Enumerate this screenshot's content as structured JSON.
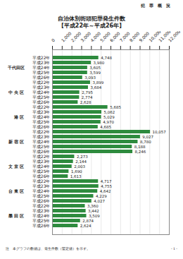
{
  "header": "犯 罪 概 況",
  "chart_data": {
    "type": "bar",
    "orientation": "horizontal",
    "title": "自治体別街頭犯罪発生件数",
    "subtitle": "【平成22年～平成26年】",
    "color": "#2e8b3e",
    "grid": true,
    "data_labels": true,
    "xlim": [
      0,
      12000
    ],
    "xticks": [
      0,
      {
        "value": 1000,
        "label": "1,000"
      },
      {
        "value": 2000,
        "label": "2,000"
      },
      {
        "value": 3000,
        "label": "3,000"
      },
      {
        "value": 4000,
        "label": "4,000"
      },
      {
        "value": 5000,
        "label": "5,000"
      },
      {
        "value": 6000,
        "label": "6,000"
      },
      {
        "value": 7000,
        "label": "7,000"
      },
      {
        "value": 8000,
        "label": "8,000"
      },
      {
        "value": 9000,
        "label": "9,000"
      },
      {
        "value": 10000,
        "label": "10,000"
      },
      {
        "value": 11000,
        "label": "11,000"
      },
      {
        "value": 12000,
        "label": "12,000"
      }
    ],
    "groups": [
      {
        "name": "千代田区",
        "categories": [
          "平成22年",
          "平成23年",
          "平成24年",
          "平成25年",
          "平成26年"
        ],
        "values": [
          4748,
          3980,
          3605,
          3599,
          3093
        ],
        "value_labels": [
          "4,748",
          "3,980",
          "3,605",
          "3,599",
          "3,093"
        ]
      },
      {
        "name": "中 央 区",
        "categories": [
          "平成22年",
          "平成23年",
          "平成24年",
          "平成25年",
          "平成26年"
        ],
        "values": [
          3899,
          3684,
          2795,
          2774,
          2628
        ],
        "value_labels": [
          "3,899",
          "3,684",
          "2,795",
          "2,774",
          "2,628"
        ]
      },
      {
        "name": "港 区",
        "categories": [
          "平成22年",
          "平成23年",
          "平成24年",
          "平成25年",
          "平成26年"
        ],
        "values": [
          5685,
          5062,
          5029,
          4970,
          4685
        ],
        "value_labels": [
          "5,685",
          "5,062",
          "5,029",
          "4,970",
          "4,685"
        ]
      },
      {
        "name": "新 宿 区",
        "categories": [
          "平成22年",
          "平成23年",
          "平成24年",
          "平成25年",
          "平成26年"
        ],
        "values": [
          10057,
          9027,
          8780,
          8188,
          8246
        ],
        "value_labels": [
          "10,057",
          "9,027",
          "8,780",
          "8,188",
          "8,246"
        ]
      },
      {
        "name": "文 京 区",
        "categories": [
          "平成22年",
          "平成23年",
          "平成24年",
          "平成25年",
          "平成26年"
        ],
        "values": [
          2273,
          2144,
          2003,
          1690,
          1613
        ],
        "value_labels": [
          "2,273",
          "2,144",
          "2,003",
          "1,690",
          "1,613"
        ]
      },
      {
        "name": "台 東 区",
        "categories": [
          "平成22年",
          "平成23年",
          "平成24年",
          "平成25年",
          "平成26年"
        ],
        "values": [
          4717,
          4755,
          4642,
          4229,
          4027
        ],
        "value_labels": [
          "4,717",
          "4,755",
          "4,642",
          "4,229",
          "4,027"
        ]
      },
      {
        "name": "墨 田 区",
        "categories": [
          "平成22年",
          "平成23年",
          "平成24年",
          "平成25年",
          "平成26年"
        ],
        "values": [
          3360,
          3442,
          3509,
          2874,
          2624
        ],
        "value_labels": [
          "3,360",
          "3,442",
          "3,509",
          "2,874",
          "2,624"
        ]
      }
    ]
  },
  "footer": {
    "note": "注　本グラフの数値は、発生件数（暫定値）を示す。",
    "page": "- 1 -"
  }
}
